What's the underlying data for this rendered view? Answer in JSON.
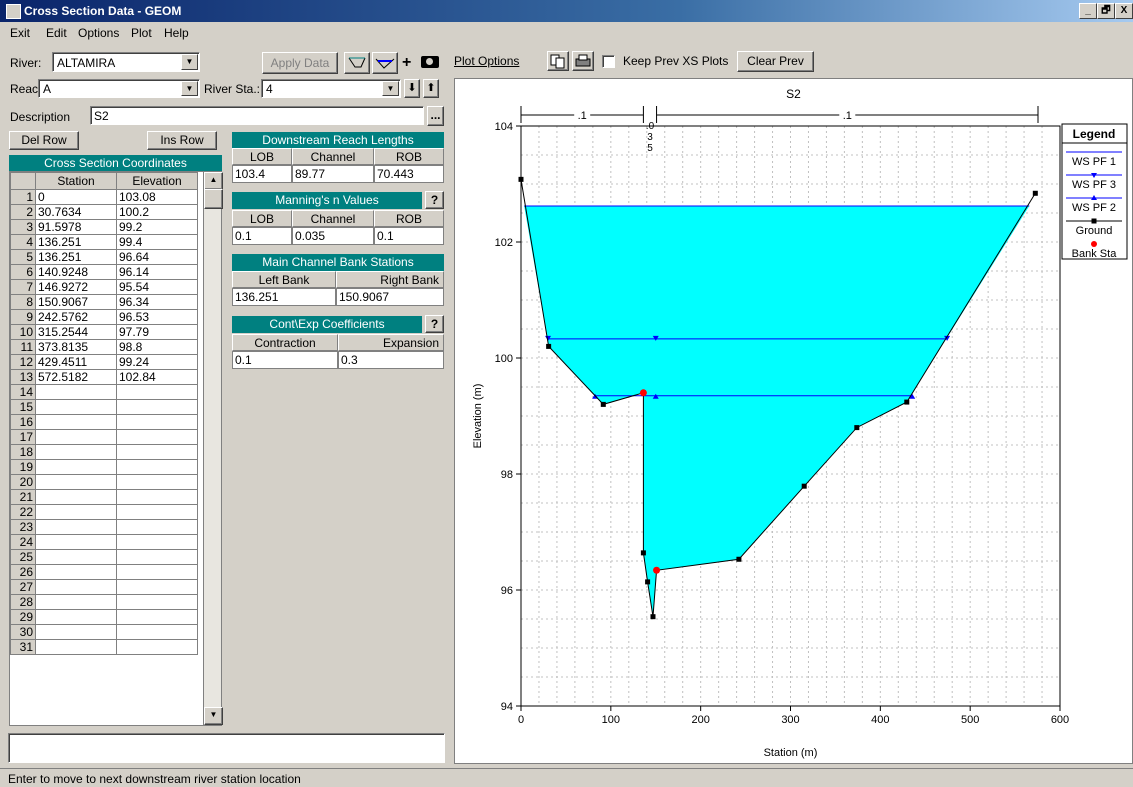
{
  "window": {
    "title": "Cross Section Data - GEOM",
    "min": "_",
    "max": "🗗",
    "close": "X"
  },
  "menu": [
    "Exit",
    "Edit",
    "Options",
    "Plot",
    "Help"
  ],
  "river": {
    "label": "River:",
    "value": "ALTAMIRA"
  },
  "reach": {
    "label": "Reach:",
    "value": "A"
  },
  "river_sta": {
    "label": "River Sta.:",
    "value": "4"
  },
  "description": {
    "label": "Description",
    "value": "S2",
    "btn": "..."
  },
  "toolbar": {
    "apply_data": "Apply Data",
    "plot_options": "Plot Options",
    "keep_prev": "Keep Prev XS Plots",
    "clear_prev": "Clear Prev"
  },
  "rows_buttons": {
    "del": "Del Row",
    "ins": "Ins Row"
  },
  "coords": {
    "title": "Cross Section Coordinates",
    "headers": [
      "Station",
      "Elevation"
    ],
    "rows": [
      [
        "0",
        "103.08"
      ],
      [
        "30.7634",
        "100.2"
      ],
      [
        "91.5978",
        "99.2"
      ],
      [
        "136.251",
        "99.4"
      ],
      [
        "136.251",
        "96.64"
      ],
      [
        "140.9248",
        "96.14"
      ],
      [
        "146.9272",
        "95.54"
      ],
      [
        "150.9067",
        "96.34"
      ],
      [
        "242.5762",
        "96.53"
      ],
      [
        "315.2544",
        "97.79"
      ],
      [
        "373.8135",
        "98.8"
      ],
      [
        "429.4511",
        "99.24"
      ],
      [
        "572.5182",
        "102.84"
      ]
    ],
    "row_numbers": [
      "1",
      "2",
      "3",
      "4",
      "5",
      "6",
      "7",
      "8",
      "9",
      "10",
      "11",
      "12",
      "13",
      "14",
      "15",
      "16",
      "17",
      "18",
      "19",
      "20",
      "21",
      "22",
      "23",
      "24",
      "25",
      "26",
      "27",
      "28",
      "29",
      "30",
      "31"
    ]
  },
  "reach_lengths": {
    "title": "Downstream Reach Lengths",
    "headers": [
      "LOB",
      "Channel",
      "ROB"
    ],
    "values": [
      "103.4",
      "89.77",
      "70.443"
    ]
  },
  "mannings": {
    "title": "Manning's n Values",
    "headers": [
      "LOB",
      "Channel",
      "ROB"
    ],
    "values": [
      "0.1",
      "0.035",
      "0.1"
    ],
    "help": "?"
  },
  "bank_stations": {
    "title": "Main Channel Bank Stations",
    "headers": [
      "Left Bank",
      "Right Bank"
    ],
    "values": [
      "136.251",
      "150.9067"
    ]
  },
  "coefficients": {
    "title": "Cont\\Exp  Coefficients",
    "headers": [
      "Contraction",
      "Expansion"
    ],
    "values": [
      "0.1",
      "0.3"
    ],
    "help": "?"
  },
  "status": "Enter to move to next downstream river station location",
  "chart_data": {
    "type": "line",
    "title": "S2",
    "xlabel": "Station (m)",
    "ylabel": "Elevation (m)",
    "xlim": [
      0,
      600
    ],
    "ylim": [
      94,
      104
    ],
    "xticks": [
      "0",
      "100",
      "200",
      "300",
      "400",
      "500",
      "600"
    ],
    "yticks": [
      "94",
      "96",
      "98",
      "100",
      "102",
      "104"
    ],
    "grid": true,
    "legend_title": "Legend",
    "legend_position": "right",
    "reach_labels": [
      ".1",
      ".0\n3\n5",
      ".1"
    ],
    "ground": {
      "name": "Ground",
      "x": [
        0,
        30.7634,
        91.5978,
        136.251,
        136.251,
        140.9248,
        146.9272,
        150.9067,
        242.5762,
        315.2544,
        373.8135,
        429.4511,
        572.5182
      ],
      "y": [
        103.08,
        100.2,
        99.2,
        99.4,
        96.64,
        96.14,
        95.54,
        96.34,
        96.53,
        97.79,
        98.8,
        99.24,
        102.84
      ]
    },
    "bank_sta": {
      "name": "Bank Sta",
      "points": [
        [
          136.251,
          99.4
        ],
        [
          150.9067,
          96.34
        ]
      ]
    },
    "series": [
      {
        "name": "WS PF 1",
        "y": 102.62,
        "x": [
          3.5,
          565.8
        ]
      },
      {
        "name": "WS PF 3",
        "y": 100.33,
        "x": [
          30.1,
          474.3
        ],
        "mid": 150
      },
      {
        "name": "WS PF 2",
        "y": 99.35,
        "x": [
          82.5,
          435.5
        ],
        "mid": 150
      }
    ],
    "colors": {
      "water": "#00ffff",
      "ws": "#0000ff",
      "ground": "#000000",
      "bank": "#ff0000"
    }
  }
}
